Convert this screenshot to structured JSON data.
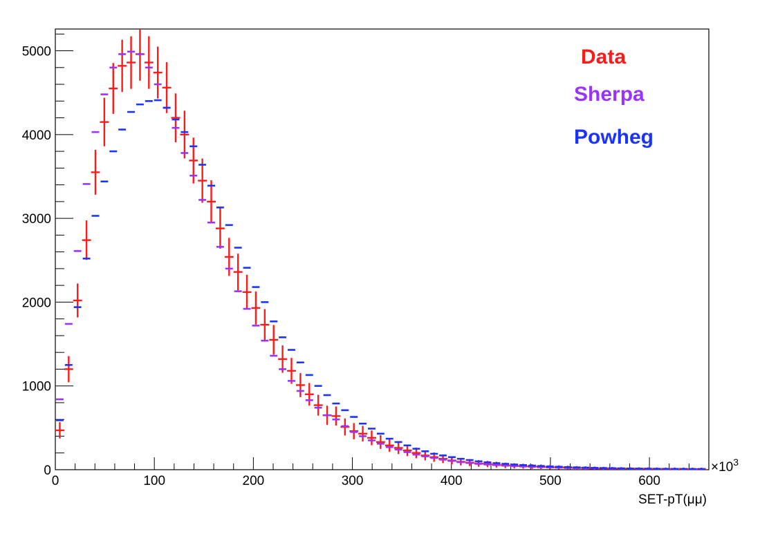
{
  "chart_data": {
    "type": "scatter",
    "xlabel": "SET-pT(μμ)",
    "x_multiplier": "×10",
    "x_multiplier_exp": "3",
    "xlim": [
      0,
      660
    ],
    "ylim": [
      0,
      5260
    ],
    "x_ticks": [
      0,
      100,
      200,
      300,
      400,
      500,
      600
    ],
    "x_tick_labels": [
      "0",
      "100",
      "200",
      "300",
      "400",
      "500",
      "600"
    ],
    "y_ticks": [
      0,
      1000,
      2000,
      3000,
      4000,
      5000
    ],
    "y_tick_labels": [
      "0",
      "1000",
      "2000",
      "3000",
      "4000",
      "5000"
    ],
    "bin_width": 9,
    "grid": false,
    "legend_position": "top-right",
    "series": [
      {
        "name": "Data",
        "color": "#ff1a1a",
        "marker": "cross",
        "x": [
          4.5,
          13.5,
          22.5,
          31.5,
          40.5,
          49.5,
          58.5,
          67.5,
          76.5,
          85.5,
          94.5,
          103.5,
          112.5,
          121.5,
          130.5,
          139.5,
          148.5,
          157.5,
          166.5,
          175.5,
          184.5,
          193.5,
          202.5,
          211.5,
          220.5,
          229.5,
          238.5,
          247.5,
          256.5,
          265.5,
          274.5,
          283.5,
          292.5,
          301.5,
          310.5,
          319.5,
          328.5,
          337.5,
          346.5,
          355.5,
          364.5,
          373.5,
          382.5,
          391.5,
          400.5,
          409.5,
          418.5,
          427.5,
          436.5,
          445.5,
          454.5,
          463.5,
          472.5,
          481.5,
          490.5,
          499.5,
          508.5,
          517.5,
          526.5,
          535.5,
          544.5,
          553.5,
          562.5,
          571.5,
          580.5,
          589.5,
          598.5,
          607.5,
          616.5,
          625.5,
          634.5,
          643.5,
          652.5
        ],
        "y": [
          470,
          1200,
          2020,
          2740,
          3550,
          4150,
          4550,
          4820,
          4860,
          4960,
          4860,
          4740,
          4560,
          4200,
          4000,
          3690,
          3450,
          3200,
          2880,
          2540,
          2360,
          2120,
          1930,
          1730,
          1550,
          1320,
          1180,
          1010,
          900,
          770,
          650,
          640,
          510,
          460,
          430,
          380,
          330,
          290,
          260,
          230,
          200,
          170,
          150,
          130,
          110,
          95,
          85,
          75,
          68,
          60,
          52,
          46,
          42,
          38,
          35,
          30,
          28,
          25,
          22,
          20,
          18,
          16,
          15,
          14,
          13,
          12,
          11,
          10,
          9,
          10,
          9,
          8,
          8
        ]
      },
      {
        "name": "Sherpa",
        "color": "#9933ff",
        "marker": "hline",
        "x": [
          4.5,
          13.5,
          22.5,
          31.5,
          40.5,
          49.5,
          58.5,
          67.5,
          76.5,
          85.5,
          94.5,
          103.5,
          112.5,
          121.5,
          130.5,
          139.5,
          148.5,
          157.5,
          166.5,
          175.5,
          184.5,
          193.5,
          202.5,
          211.5,
          220.5,
          229.5,
          238.5,
          247.5,
          256.5,
          265.5,
          274.5,
          283.5,
          292.5,
          301.5,
          310.5,
          319.5,
          328.5,
          337.5,
          346.5,
          355.5,
          364.5,
          373.5,
          382.5,
          391.5,
          400.5,
          409.5,
          418.5,
          427.5,
          436.5,
          445.5,
          454.5,
          463.5,
          472.5,
          481.5,
          490.5,
          499.5,
          508.5,
          517.5,
          526.5,
          535.5,
          544.5,
          553.5,
          562.5,
          571.5,
          580.5,
          589.5,
          598.5,
          607.5,
          616.5,
          625.5,
          634.5,
          643.5,
          652.5
        ],
        "y": [
          840,
          1740,
          2610,
          3410,
          4030,
          4480,
          4800,
          4960,
          4990,
          4960,
          4800,
          4600,
          4320,
          4080,
          3780,
          3510,
          3220,
          2950,
          2660,
          2400,
          2130,
          1920,
          1720,
          1540,
          1360,
          1200,
          1060,
          940,
          830,
          740,
          650,
          600,
          520,
          450,
          400,
          350,
          310,
          270,
          240,
          210,
          180,
          160,
          140,
          120,
          105,
          90,
          80,
          70,
          62,
          55,
          48,
          43,
          38,
          34,
          30,
          27,
          24,
          21,
          19,
          17,
          15,
          14,
          12,
          11,
          10,
          9,
          8,
          8,
          7,
          7,
          6,
          6,
          5
        ]
      },
      {
        "name": "Powheg",
        "color": "#1a33ff",
        "marker": "hline",
        "x": [
          4.5,
          13.5,
          22.5,
          31.5,
          40.5,
          49.5,
          58.5,
          67.5,
          76.5,
          85.5,
          94.5,
          103.5,
          112.5,
          121.5,
          130.5,
          139.5,
          148.5,
          157.5,
          166.5,
          175.5,
          184.5,
          193.5,
          202.5,
          211.5,
          220.5,
          229.5,
          238.5,
          247.5,
          256.5,
          265.5,
          274.5,
          283.5,
          292.5,
          301.5,
          310.5,
          319.5,
          328.5,
          337.5,
          346.5,
          355.5,
          364.5,
          373.5,
          382.5,
          391.5,
          400.5,
          409.5,
          418.5,
          427.5,
          436.5,
          445.5,
          454.5,
          463.5,
          472.5,
          481.5,
          490.5,
          499.5,
          508.5,
          517.5,
          526.5,
          535.5,
          544.5,
          553.5,
          562.5,
          571.5,
          580.5,
          589.5,
          598.5,
          607.5,
          616.5,
          625.5,
          634.5,
          643.5,
          652.5
        ],
        "y": [
          590,
          1250,
          1940,
          2520,
          3030,
          3440,
          3800,
          4060,
          4270,
          4360,
          4400,
          4410,
          4320,
          4180,
          4030,
          3860,
          3640,
          3390,
          3130,
          2920,
          2650,
          2410,
          2180,
          2000,
          1770,
          1580,
          1430,
          1280,
          1130,
          1000,
          890,
          790,
          710,
          630,
          550,
          490,
          430,
          370,
          330,
          290,
          250,
          220,
          190,
          170,
          150,
          130,
          115,
          100,
          88,
          78,
          70,
          62,
          55,
          49,
          44,
          39,
          35,
          31,
          28,
          25,
          22,
          20,
          18,
          16,
          14,
          13,
          12,
          11,
          10,
          9,
          9,
          8,
          8
        ]
      }
    ]
  }
}
